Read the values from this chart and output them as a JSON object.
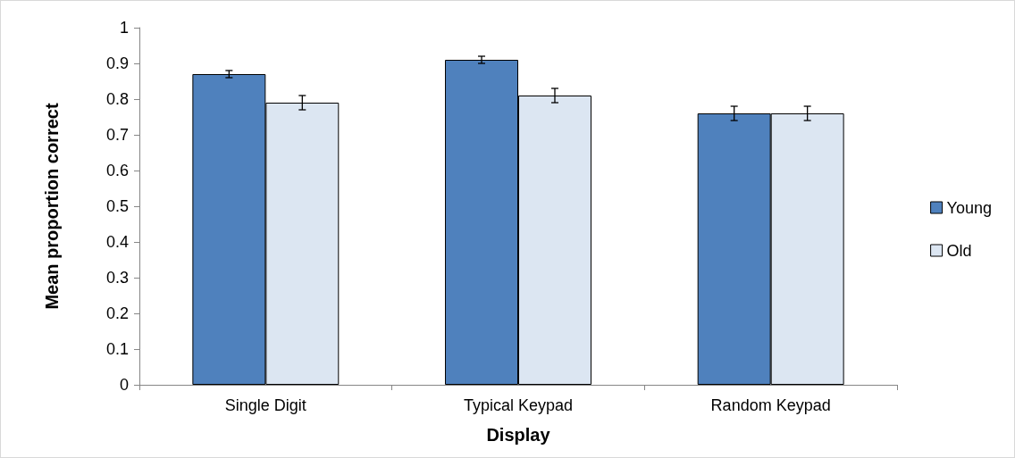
{
  "chart_data": {
    "type": "bar",
    "xlabel": "Display",
    "ylabel": "Mean proportion correct",
    "categories": [
      "Single Digit",
      "Typical Keypad",
      "Random Keypad"
    ],
    "series": [
      {
        "name": "Young",
        "color": "#4f81bd",
        "values": [
          0.87,
          0.91,
          0.76
        ],
        "errors": [
          0.01,
          0.01,
          0.02
        ]
      },
      {
        "name": "Old",
        "color": "#dce6f2",
        "values": [
          0.79,
          0.81,
          0.76
        ],
        "errors": [
          0.02,
          0.02,
          0.02
        ]
      }
    ],
    "ylim": [
      0,
      1
    ],
    "yticks": [
      0,
      0.1,
      0.2,
      0.3,
      0.4,
      0.5,
      0.6,
      0.7,
      0.8,
      0.9,
      1
    ],
    "grid": false,
    "legend": "right"
  }
}
